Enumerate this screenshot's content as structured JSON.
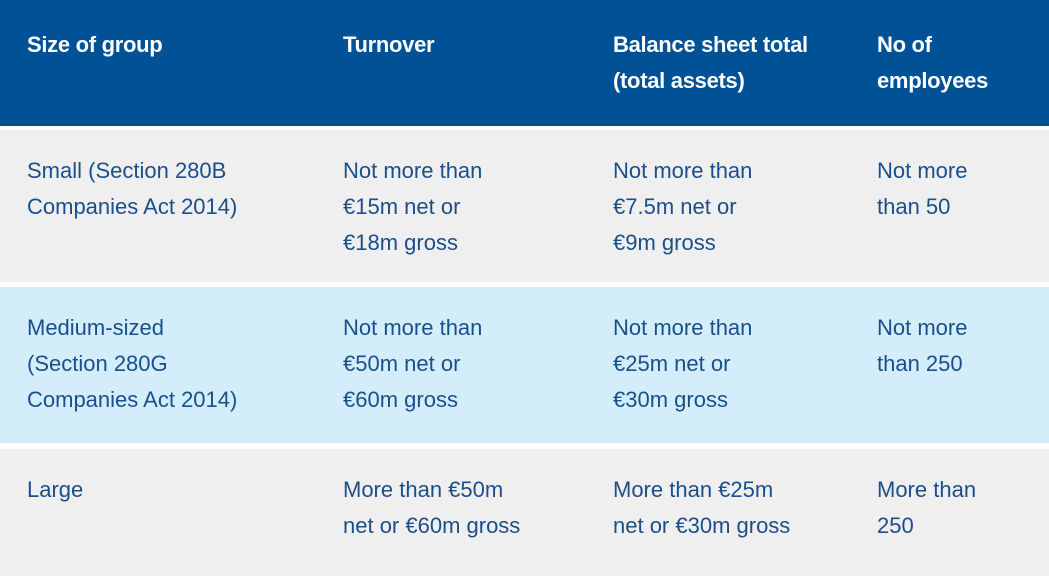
{
  "table": {
    "header": [
      [
        "Size of group"
      ],
      [
        "Turnover"
      ],
      [
        "Balance sheet total",
        "(total assets)"
      ],
      [
        "No of",
        "employees"
      ]
    ],
    "rows": [
      [
        [
          "Small (Section 280B",
          "Companies Act 2014)"
        ],
        [
          "Not more than",
          "€15m net or",
          "€18m gross"
        ],
        [
          "Not more than",
          "€7.5m net or",
          "€9m gross"
        ],
        [
          "Not more",
          "than 50"
        ]
      ],
      [
        [
          "Medium-sized",
          "(Section 280G",
          "Companies Act 2014)"
        ],
        [
          "Not more than",
          "€50m net or",
          "€60m gross"
        ],
        [
          "Not more than",
          "€25m net or",
          "€30m gross"
        ],
        [
          "Not more",
          "than 250"
        ]
      ],
      [
        [
          "Large"
        ],
        [
          "More than €50m",
          "net or €60m gross"
        ],
        [
          "More than €25m",
          "net or €30m gross"
        ],
        [
          "More than",
          "250"
        ]
      ]
    ]
  }
}
